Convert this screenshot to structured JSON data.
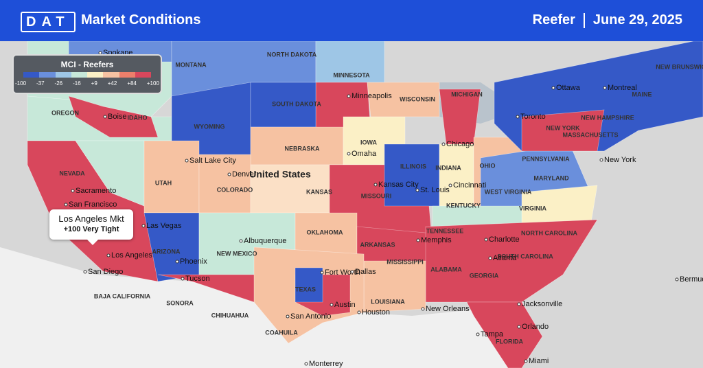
{
  "header": {
    "logo": "DAT",
    "title": "Market Conditions",
    "equipment": "Reefer",
    "date": "June 29, 2025"
  },
  "legend": {
    "title": "MCI - Reefers",
    "stops": [
      {
        "label": "-100",
        "color": "#3559c7"
      },
      {
        "label": "-37",
        "color": "#6a8fdc"
      },
      {
        "label": "-26",
        "color": "#9ec6e6"
      },
      {
        "label": "-16",
        "color": "#c7e8d9"
      },
      {
        "label": "+9",
        "color": "#fbf0c6"
      },
      {
        "label": "+42",
        "color": "#f6c2a2"
      },
      {
        "label": "+84",
        "color": "#ec7f6b"
      },
      {
        "label": "+100",
        "color": "#d8475c"
      }
    ]
  },
  "tooltip": {
    "market": "Los Angeles Mkt",
    "status": "+100 Very Tight"
  },
  "labels": [
    "MONTANA",
    "NORTH DAKOTA",
    "MINNESOTA",
    "OREGON",
    "IDAHO",
    "WYOMING",
    "SOUTH DAKOTA",
    "WISCONSIN",
    "MICHIGAN",
    "NEBRASKA",
    "IOWA",
    "NEVADA",
    "UTAH",
    "COLORADO",
    "KANSAS",
    "MISSOURI",
    "ILLINOIS",
    "INDIANA",
    "OHIO",
    "KENTUCKY",
    "TENNESSEE",
    "ARIZONA",
    "NEW MEXICO",
    "OKLAHOMA",
    "ARKANSAS",
    "MISSISSIPPI",
    "ALABAMA",
    "GEORGIA",
    "TEXAS",
    "LOUISIANA",
    "FLORIDA",
    "VIRGINIA",
    "WEST VIRGINIA",
    "PENNSYLVANIA",
    "NEW YORK",
    "NORTH CAROLINA",
    "SOUTH CAROLINA",
    "MARYLAND",
    "MASSACHUSETTS",
    "NEW HAMPSHIRE",
    "MAINE",
    "NEW BRUNSWICK",
    "SONORA",
    "CHIHUAHUA",
    "COAHUILA",
    "BAJA CALIFORNIA",
    "United States",
    "Spokane",
    "Boise",
    "Minneapolis",
    "Chicago",
    "Toronto",
    "Ottawa",
    "Montreal",
    "Salt Lake City",
    "Denver",
    "Omaha",
    "Kansas City",
    "St. Louis",
    "Cincinnati",
    "Sacramento",
    "San Francisco",
    "Las Vegas",
    "Los Angeles",
    "San Diego",
    "Phoenix",
    "Tucson",
    "Albuquerque",
    "Fort Worth",
    "Dallas",
    "Austin",
    "San Antonio",
    "Houston",
    "Memphis",
    "Atlanta",
    "Charlotte",
    "Jacksonville",
    "Orlando",
    "Tampa",
    "Miami",
    "New Orleans",
    "New York",
    "Monterrey",
    "Bermuda"
  ]
}
